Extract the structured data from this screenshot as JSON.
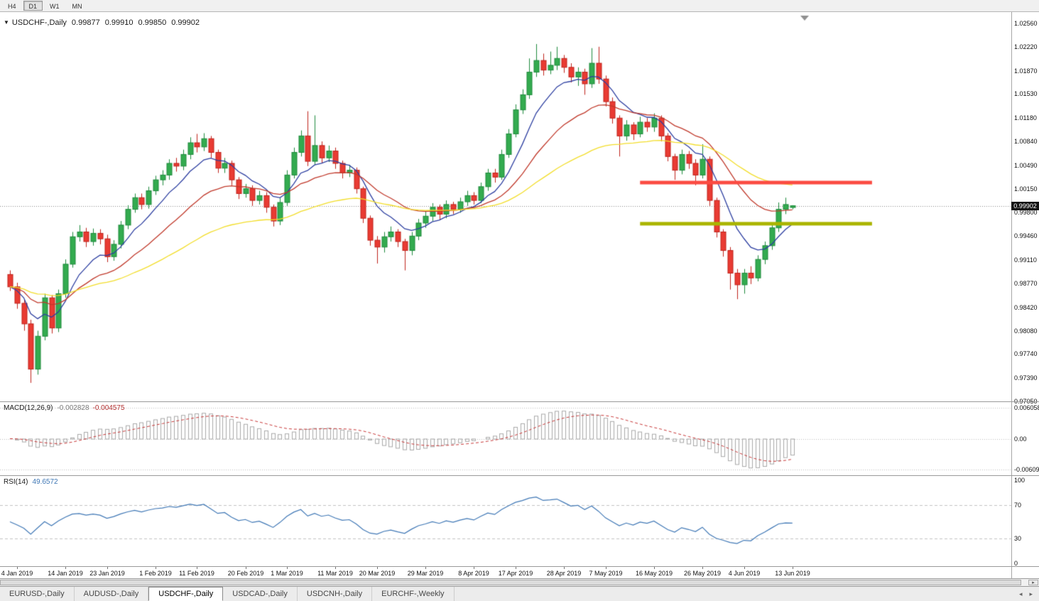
{
  "icons": {
    "symbol_dropdown": "▼",
    "scroll_right": "▸",
    "tab_scroll_left": "◂",
    "tab_scroll_right": "▸"
  },
  "toolbar": {
    "buttons": [
      "H4",
      "D1",
      "W1",
      "MN"
    ],
    "active": "D1"
  },
  "chart": {
    "header": {
      "symbol": "USDCHF-,Daily",
      "open": "0.99877",
      "high": "0.99910",
      "low": "0.99850",
      "close": "0.99902"
    },
    "price_axis": {
      "labels": [
        "1.02560",
        "1.02220",
        "1.01870",
        "1.01530",
        "1.01180",
        "1.00840",
        "1.00490",
        "1.00150",
        "0.99800",
        "0.99460",
        "0.99110",
        "0.98770",
        "0.98420",
        "0.98080",
        "0.97740",
        "0.97390",
        "0.97050"
      ],
      "top_value": 1.0256,
      "bottom_value": 0.9705,
      "current_price": "0.99902"
    },
    "date_axis": {
      "labels": [
        {
          "text": "4 Jan 2019",
          "index": 1
        },
        {
          "text": "14 Jan 2019",
          "index": 8
        },
        {
          "text": "23 Jan 2019",
          "index": 14
        },
        {
          "text": "1 Feb 2019",
          "index": 21
        },
        {
          "text": "11 Feb 2019",
          "index": 27
        },
        {
          "text": "20 Feb 2019",
          "index": 34
        },
        {
          "text": "1 Mar 2019",
          "index": 40
        },
        {
          "text": "11 Mar 2019",
          "index": 47
        },
        {
          "text": "20 Mar 2019",
          "index": 53
        },
        {
          "text": "29 Mar 2019",
          "index": 60
        },
        {
          "text": "8 Apr 2019",
          "index": 67
        },
        {
          "text": "17 Apr 2019",
          "index": 73
        },
        {
          "text": "28 Apr 2019",
          "index": 80
        },
        {
          "text": "7 May 2019",
          "index": 86
        },
        {
          "text": "16 May 2019",
          "index": 93
        },
        {
          "text": "26 May 2019",
          "index": 100
        },
        {
          "text": "4 Jun 2019",
          "index": 106
        },
        {
          "text": "13 Jun 2019",
          "index": 113
        }
      ]
    }
  },
  "chart_data": {
    "type": "candlestick",
    "symbol": "USDCHF",
    "timeframe": "Daily",
    "current_price": 0.99902,
    "colors": {
      "up": "#33ab4f",
      "up_border": "#1e8a3c",
      "down": "#e93b33",
      "down_border": "#bf221b",
      "price_line": "#888888",
      "shift_marker": "#909090"
    },
    "moving_averages": [
      {
        "name": "ma-fast",
        "period": 8,
        "color": "#2c3ea0"
      },
      {
        "name": "ma-medium",
        "period": 20,
        "color": "#c0392b"
      },
      {
        "name": "ma-slow",
        "period": 48,
        "color": "#f2dd2a"
      }
    ],
    "horizontal_lines": [
      {
        "name": "resistance-line",
        "price": 1.0024,
        "color": "#fb4b42",
        "thickness": 5,
        "from_index": 91,
        "to_index": 124.5
      },
      {
        "name": "support-line",
        "price": 0.9964,
        "color": "#aab400",
        "thickness": 5,
        "from_index": 91,
        "to_index": 124.5
      }
    ],
    "candles": [
      [
        0.989,
        0.9896,
        0.9866,
        0.9872
      ],
      [
        0.9872,
        0.9878,
        0.984,
        0.9848
      ],
      [
        0.9848,
        0.9854,
        0.9808,
        0.9818
      ],
      [
        0.9818,
        0.9824,
        0.9732,
        0.9752
      ],
      [
        0.9752,
        0.9808,
        0.9744,
        0.98
      ],
      [
        0.98,
        0.9862,
        0.9794,
        0.9856
      ],
      [
        0.9856,
        0.986,
        0.9804,
        0.9812
      ],
      [
        0.9812,
        0.9868,
        0.9806,
        0.9862
      ],
      [
        0.9862,
        0.9912,
        0.9856,
        0.9905
      ],
      [
        0.9905,
        0.9952,
        0.99,
        0.9945
      ],
      [
        0.9945,
        0.9962,
        0.9938,
        0.9952
      ],
      [
        0.9952,
        0.9958,
        0.993,
        0.9938
      ],
      [
        0.9938,
        0.9957,
        0.9932,
        0.995
      ],
      [
        0.995,
        0.9956,
        0.9934,
        0.9942
      ],
      [
        0.9942,
        0.9948,
        0.9908,
        0.9916
      ],
      [
        0.9916,
        0.994,
        0.991,
        0.9934
      ],
      [
        0.9934,
        0.9968,
        0.9928,
        0.9962
      ],
      [
        0.9962,
        0.9991,
        0.9956,
        0.9985
      ],
      [
        0.9985,
        1.0008,
        0.998,
        1.0002
      ],
      [
        1.0002,
        1.0008,
        0.9985,
        0.9992
      ],
      [
        0.9992,
        1.0018,
        0.9986,
        1.0012
      ],
      [
        1.0012,
        1.0034,
        1.0006,
        1.0028
      ],
      [
        1.0028,
        1.0042,
        1.002,
        1.0035
      ],
      [
        1.0035,
        1.0058,
        1.0028,
        1.0052
      ],
      [
        1.0052,
        1.006,
        1.004,
        1.0048
      ],
      [
        1.0048,
        1.0072,
        1.0042,
        1.0065
      ],
      [
        1.0065,
        1.009,
        1.0058,
        1.0082
      ],
      [
        1.0082,
        1.0095,
        1.0068,
        1.0076
      ],
      [
        1.0076,
        1.0096,
        1.007,
        1.0088
      ],
      [
        1.0088,
        1.0092,
        1.006,
        1.0068
      ],
      [
        1.0068,
        1.0072,
        1.0038,
        1.0045
      ],
      [
        1.0045,
        1.006,
        1.0038,
        1.0052
      ],
      [
        1.0052,
        1.0056,
        1.002,
        1.0028
      ],
      [
        1.0028,
        1.0032,
        1.0,
        1.0008
      ],
      [
        1.0008,
        1.0022,
        1.0002,
        1.0015
      ],
      [
        1.0015,
        1.002,
        0.999,
        0.9998
      ],
      [
        0.9998,
        1.0012,
        0.9992,
        1.0005
      ],
      [
        1.0005,
        1.001,
        0.998,
        0.9988
      ],
      [
        0.9988,
        0.9992,
        0.996,
        0.9968
      ],
      [
        0.9968,
        1.0002,
        0.9962,
        0.9995
      ],
      [
        0.9995,
        1.0042,
        0.999,
        1.0035
      ],
      [
        1.0035,
        1.0075,
        1.003,
        1.0068
      ],
      [
        1.0068,
        1.01,
        1.0062,
        1.0092
      ],
      [
        1.0092,
        1.0128,
        1.0048,
        1.0055
      ],
      [
        1.0055,
        1.0122,
        1.005,
        1.0078
      ],
      [
        1.0078,
        1.0084,
        1.0052,
        1.006
      ],
      [
        1.006,
        1.0078,
        1.0054,
        1.007
      ],
      [
        1.007,
        1.0075,
        1.0044,
        1.0052
      ],
      [
        1.0052,
        1.0056,
        1.003,
        1.0038
      ],
      [
        1.0038,
        1.005,
        1.0032,
        1.0042
      ],
      [
        1.0042,
        1.0046,
        1.0008,
        1.0015
      ],
      [
        1.0015,
        1.0018,
        0.9965,
        0.9972
      ],
      [
        0.9972,
        0.9976,
        0.9932,
        0.994
      ],
      [
        0.994,
        0.9946,
        0.9906,
        0.993
      ],
      [
        0.993,
        0.9952,
        0.9922,
        0.9945
      ],
      [
        0.9945,
        0.996,
        0.9938,
        0.9952
      ],
      [
        0.9952,
        0.9956,
        0.993,
        0.9938
      ],
      [
        0.9938,
        0.9942,
        0.9896,
        0.9925
      ],
      [
        0.9925,
        0.9952,
        0.9918,
        0.9946
      ],
      [
        0.9946,
        0.9971,
        0.994,
        0.9965
      ],
      [
        0.9965,
        0.9982,
        0.9958,
        0.9975
      ],
      [
        0.9975,
        0.9994,
        0.9968,
        0.9988
      ],
      [
        0.9988,
        0.9992,
        0.997,
        0.9978
      ],
      [
        0.9978,
        0.9998,
        0.9972,
        0.9992
      ],
      [
        0.9992,
        0.9996,
        0.9978,
        0.9985
      ],
      [
        0.9985,
        1.0002,
        0.998,
        0.9996
      ],
      [
        0.9996,
        1.0012,
        0.999,
        1.0005
      ],
      [
        1.0005,
        1.001,
        0.9992,
        0.9998
      ],
      [
        0.9998,
        1.0024,
        0.9994,
        1.0018
      ],
      [
        1.0018,
        1.0044,
        1.0012,
        1.0038
      ],
      [
        1.0038,
        1.0044,
        1.0024,
        1.0032
      ],
      [
        1.0032,
        1.0072,
        1.0028,
        1.0065
      ],
      [
        1.0065,
        1.0102,
        1.006,
        1.0095
      ],
      [
        1.0095,
        1.0138,
        1.009,
        1.013
      ],
      [
        1.013,
        1.016,
        1.0124,
        1.0152
      ],
      [
        1.0152,
        1.0205,
        1.0146,
        1.0185
      ],
      [
        1.0185,
        1.0226,
        1.0178,
        1.0202
      ],
      [
        1.0202,
        1.0212,
        1.018,
        1.0188
      ],
      [
        1.0188,
        1.0215,
        1.0182,
        1.0195
      ],
      [
        1.0195,
        1.0222,
        1.0188,
        1.0205
      ],
      [
        1.0205,
        1.021,
        1.0184,
        1.0192
      ],
      [
        1.0192,
        1.0198,
        1.017,
        1.0178
      ],
      [
        1.0178,
        1.0192,
        1.0165,
        1.0185
      ],
      [
        1.0185,
        1.019,
        1.0152,
        1.0168
      ],
      [
        1.0168,
        1.022,
        1.0162,
        1.0198
      ],
      [
        1.0198,
        1.0222,
        1.0168,
        1.0175
      ],
      [
        1.0175,
        1.018,
        1.0135,
        1.0142
      ],
      [
        1.0142,
        1.0148,
        1.011,
        1.0118
      ],
      [
        1.0118,
        1.0122,
        1.0062,
        1.0092
      ],
      [
        1.0092,
        1.0115,
        1.0085,
        1.0108
      ],
      [
        1.0108,
        1.0112,
        1.0086,
        1.0095
      ],
      [
        1.0095,
        1.012,
        1.009,
        1.0112
      ],
      [
        1.0112,
        1.0118,
        1.0098,
        1.0105
      ],
      [
        1.0105,
        1.0125,
        1.0098,
        1.0118
      ],
      [
        1.0118,
        1.0122,
        1.0084,
        1.0092
      ],
      [
        1.0092,
        1.0096,
        1.0055,
        1.0062
      ],
      [
        1.0062,
        1.0066,
        1.0028,
        1.0042
      ],
      [
        1.0042,
        1.0072,
        1.0036,
        1.0065
      ],
      [
        1.0065,
        1.007,
        1.0044,
        1.0052
      ],
      [
        1.0052,
        1.0058,
        1.002,
        1.0035
      ],
      [
        1.0035,
        1.008,
        1.003,
        1.0058
      ],
      [
        1.0058,
        1.0062,
        0.999,
        0.9998
      ],
      [
        0.9998,
        1.0002,
        0.9944,
        0.9952
      ],
      [
        0.9952,
        0.9956,
        0.9916,
        0.9925
      ],
      [
        0.9925,
        0.993,
        0.9868,
        0.9892
      ],
      [
        0.9892,
        0.9898,
        0.9854,
        0.9875
      ],
      [
        0.9875,
        0.9898,
        0.9862,
        0.9892
      ],
      [
        0.9892,
        0.9902,
        0.9876,
        0.9885
      ],
      [
        0.9885,
        0.9918,
        0.988,
        0.9912
      ],
      [
        0.9912,
        0.9938,
        0.9905,
        0.9932
      ],
      [
        0.9932,
        0.9964,
        0.9926,
        0.9958
      ],
      [
        0.9958,
        0.9995,
        0.9952,
        0.9985
      ],
      [
        0.9985,
        1.0002,
        0.9978,
        0.9992
      ],
      [
        0.99877,
        0.9991,
        0.9985,
        0.99902
      ]
    ]
  },
  "macd": {
    "label": "MACD(12,26,9)",
    "value_main": "-0.002828",
    "value_signal": "-0.004575",
    "axis": [
      "0.006058",
      "0.00",
      "-0.006096"
    ],
    "params": {
      "fast": 12,
      "slow": 26,
      "signal": 9
    },
    "hist_color": "#a8a8a8",
    "signal_color": "#c63434"
  },
  "rsi": {
    "label": "RSI(14)",
    "value": "49.6572",
    "axis": [
      "100",
      "70",
      "30",
      "0"
    ],
    "levels": [
      70,
      30
    ],
    "period": 14,
    "line_color": "#3f77b5"
  },
  "tabs": {
    "items": [
      {
        "label": "EURUSD-,Daily",
        "active": false
      },
      {
        "label": "AUDUSD-,Daily",
        "active": false
      },
      {
        "label": "USDCHF-,Daily",
        "active": true
      },
      {
        "label": "USDCAD-,Daily",
        "active": false
      },
      {
        "label": "USDCNH-,Daily",
        "active": false
      },
      {
        "label": "EURCHF-,Weekly",
        "active": false
      }
    ]
  }
}
